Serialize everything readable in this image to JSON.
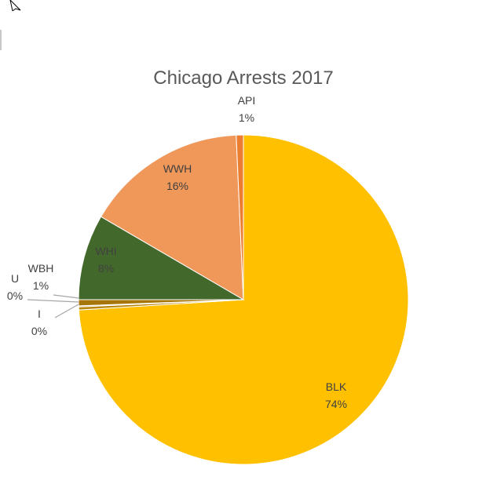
{
  "chart_data": {
    "type": "pie",
    "title": "Chicago Arrests 2017",
    "start_angle_deg": 0,
    "direction": "clockwise",
    "legend": "none",
    "slices": [
      {
        "name": "BLK",
        "value": 74,
        "label": "74%",
        "color": "#FFC000"
      },
      {
        "name": "I",
        "value": 0.3,
        "label": "0%",
        "color": "#B8860B"
      },
      {
        "name": "U",
        "value": 0.1,
        "label": "0%",
        "color": "#C9A227"
      },
      {
        "name": "WBH",
        "value": 0.6,
        "label": "1%",
        "color": "#A6760A"
      },
      {
        "name": "WHI",
        "value": 8.4,
        "label": "8%",
        "color": "#43682B"
      },
      {
        "name": "WWH",
        "value": 15.9,
        "label": "16%",
        "color": "#F0975A"
      },
      {
        "name": "API",
        "value": 0.7,
        "label": "1%",
        "color": "#ED7D31"
      }
    ]
  },
  "icons": {
    "cursor": "mouse-pointer-icon"
  }
}
